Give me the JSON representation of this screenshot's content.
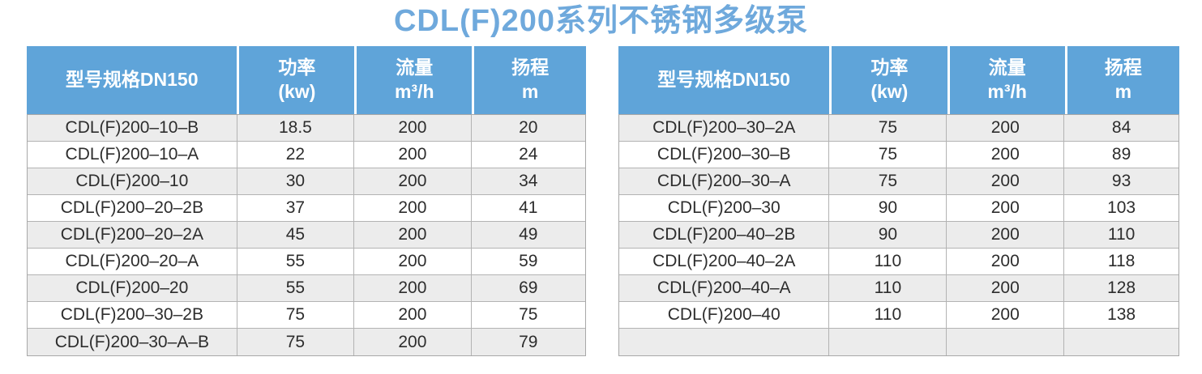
{
  "page_title": "CDL(F)200系列不锈钢多级泵",
  "colors": {
    "title_color": "#6fa9dc",
    "header_bg": "#5fa4d9",
    "header_text": "#ffffff",
    "stripe_bg": "#ececec",
    "row_bg": "#ffffff",
    "border_outer": "#a8a8a8",
    "border_inner": "#b3b3b3",
    "text": "#2d2d2d"
  },
  "tables": [
    {
      "headers": [
        "型号规格DN150",
        "功率\n(kw)",
        "流量\nm³/h",
        "扬程\nm"
      ],
      "rows": [
        [
          "CDL(F)200–10–B",
          "18.5",
          "200",
          "20"
        ],
        [
          "CDL(F)200–10–A",
          "22",
          "200",
          "24"
        ],
        [
          "CDL(F)200–10",
          "30",
          "200",
          "34"
        ],
        [
          "CDL(F)200–20–2B",
          "37",
          "200",
          "41"
        ],
        [
          "CDL(F)200–20–2A",
          "45",
          "200",
          "49"
        ],
        [
          "CDL(F)200–20–A",
          "55",
          "200",
          "59"
        ],
        [
          "CDL(F)200–20",
          "55",
          "200",
          "69"
        ],
        [
          "CDL(F)200–30–2B",
          "75",
          "200",
          "75"
        ],
        [
          "CDL(F)200–30–A–B",
          "75",
          "200",
          "79"
        ]
      ]
    },
    {
      "headers": [
        "型号规格DN150",
        "功率\n(kw)",
        "流量\nm³/h",
        "扬程\nm"
      ],
      "rows": [
        [
          "CDL(F)200–30–2A",
          "75",
          "200",
          "84"
        ],
        [
          "CDL(F)200–30–B",
          "75",
          "200",
          "89"
        ],
        [
          "CDL(F)200–30–A",
          "75",
          "200",
          "93"
        ],
        [
          "CDL(F)200–30",
          "90",
          "200",
          "103"
        ],
        [
          "CDL(F)200–40–2B",
          "90",
          "200",
          "110"
        ],
        [
          "CDL(F)200–40–2A",
          "110",
          "200",
          "118"
        ],
        [
          "CDL(F)200–40–A",
          "110",
          "200",
          "128"
        ],
        [
          "CDL(F)200–40",
          "110",
          "200",
          "138"
        ],
        [
          "",
          "",
          "",
          ""
        ]
      ]
    }
  ]
}
